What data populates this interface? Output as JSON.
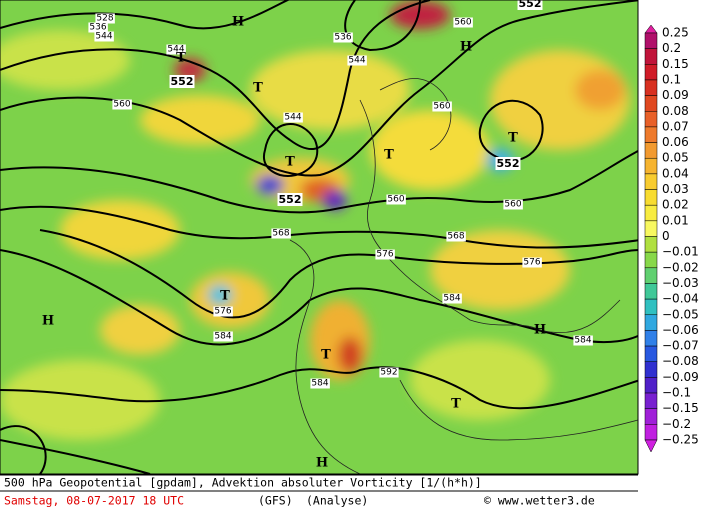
{
  "map": {
    "contour_labels": [
      "528",
      "536",
      "544",
      "544",
      "552",
      "536",
      "544",
      "560",
      "552",
      "560",
      "544",
      "560",
      "552",
      "552",
      "560",
      "560",
      "568",
      "568",
      "576",
      "576",
      "576",
      "584",
      "584",
      "584",
      "584",
      "592"
    ],
    "pressure_centers": [
      "T",
      "H",
      "H",
      "T",
      "T",
      "T",
      "T",
      "T",
      "H",
      "T",
      "H",
      "T",
      "H"
    ]
  },
  "colorbar": {
    "labels": [
      "0.25",
      "0.2",
      "0.15",
      "0.1",
      "0.09",
      "0.08",
      "0.07",
      "0.06",
      "0.05",
      "0.04",
      "0.03",
      "0.02",
      "0.01",
      "0",
      "−0.01",
      "−0.02",
      "−0.03",
      "−0.04",
      "−0.05",
      "−0.06",
      "−0.07",
      "−0.08",
      "−0.09",
      "−0.1",
      "−0.15",
      "−0.2",
      "−0.25"
    ]
  },
  "footer": {
    "description": "500 hPa Geopotential [gpdam], Advektion absoluter Vorticity [1/(h*h)]",
    "date": "Samstag, 08-07-2017  18 UTC",
    "model": "(GFS)",
    "run": "(Analyse)",
    "credit": "© www.wetter3.de"
  }
}
